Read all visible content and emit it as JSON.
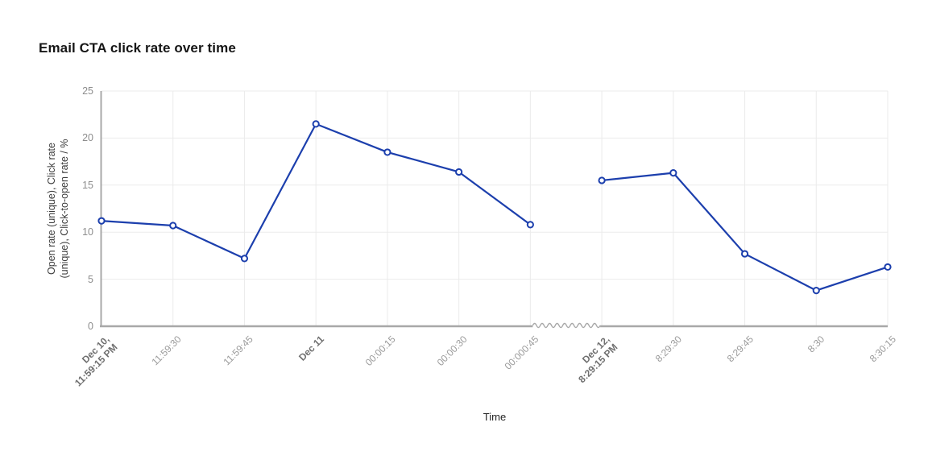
{
  "chart_data": {
    "type": "line",
    "title": "Email CTA click rate over time",
    "xlabel": "Time",
    "ylabel_line1": "Open rate (unique), Click rate",
    "ylabel_line2": "(unique), Click-to-open rate / %",
    "ylim": [
      0,
      25
    ],
    "yticks": [
      0,
      5,
      10,
      15,
      20,
      25
    ],
    "grid": true,
    "legend": "none",
    "axis_break_between_indices": [
      6,
      7
    ],
    "categories": [
      {
        "lines": [
          "Dec 10,",
          "11:59:15 PM"
        ],
        "bold": true
      },
      {
        "lines": [
          "11:59:30"
        ],
        "bold": false
      },
      {
        "lines": [
          "11:59:45"
        ],
        "bold": false
      },
      {
        "lines": [
          "Dec 11"
        ],
        "bold": true
      },
      {
        "lines": [
          "00:00:15"
        ],
        "bold": false
      },
      {
        "lines": [
          "00:00:30"
        ],
        "bold": false
      },
      {
        "lines": [
          "00:000:45"
        ],
        "bold": false
      },
      {
        "lines": [
          "Dec 12,",
          "8:29:15 PM"
        ],
        "bold": true
      },
      {
        "lines": [
          "8:29:30"
        ],
        "bold": false
      },
      {
        "lines": [
          "8:29:45"
        ],
        "bold": false
      },
      {
        "lines": [
          "8:30"
        ],
        "bold": false
      },
      {
        "lines": [
          "8:30:15"
        ],
        "bold": false
      }
    ],
    "series": [
      {
        "name": "Click rate",
        "values": [
          11.2,
          10.7,
          7.2,
          21.5,
          18.5,
          16.4,
          10.8,
          15.5,
          16.3,
          7.7,
          3.8,
          6.3
        ]
      }
    ],
    "colors": {
      "line": "#1c3fad",
      "marker_fill": "#ffffff",
      "gridline": "#ebebeb",
      "axis": "#a8a8a8",
      "title_text": "#161616",
      "tick_text": "#9a9a9a",
      "bold_tick_text": "#6f6f6f"
    }
  }
}
